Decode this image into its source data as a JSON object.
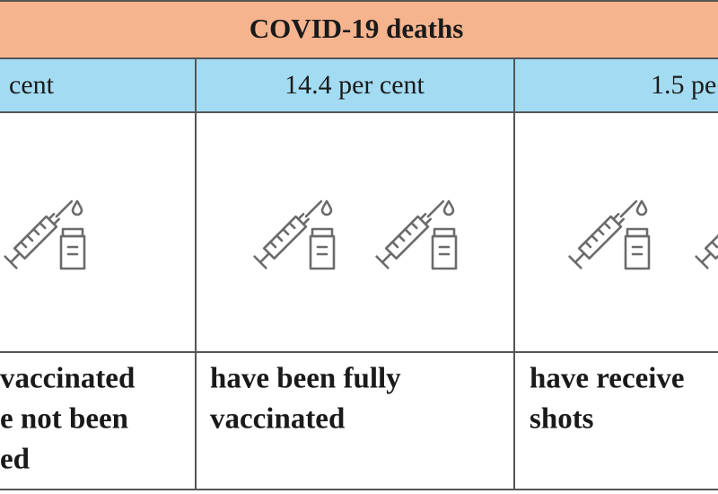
{
  "table": {
    "title": "COVID-19 deaths",
    "header_row": [
      "cent",
      "14.4 per cent",
      "1.5 pe"
    ],
    "descriptions": [
      [
        "vaccinated",
        "e not been",
        "ed"
      ],
      [
        "have been fully",
        "vaccinated"
      ],
      [
        "have receive",
        "shots"
      ]
    ]
  }
}
